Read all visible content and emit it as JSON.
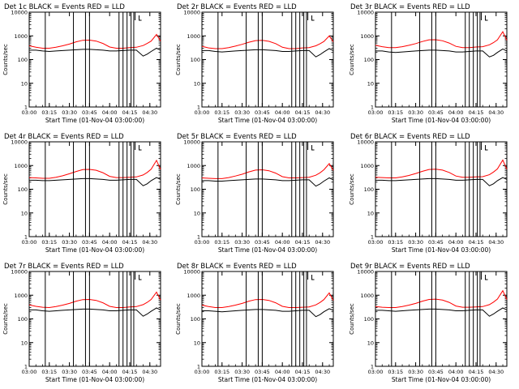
{
  "colors": {
    "events": "#000000",
    "lld": "#ff0000",
    "background": "#ffffff",
    "axes": "#000000"
  },
  "chart_data": [
    {
      "type": "line",
      "title": "Det 1c BLACK = Events  RED = LLD",
      "xlabel": "Start Time (01-Nov-04 03:00:00)",
      "ylabel": "Counts/sec",
      "yscale": "log",
      "ylim": [
        1,
        10000
      ],
      "xlim": [
        "03:00",
        "04:38"
      ],
      "x_ticks": [
        "03:00",
        "03:15",
        "03:30",
        "03:45",
        "04:00",
        "04:15",
        "04:30"
      ],
      "y_ticks": [
        "1",
        "10",
        "100",
        "1000",
        "10000"
      ],
      "x": [
        "03:00",
        "03:05",
        "03:10",
        "03:15",
        "03:20",
        "03:25",
        "03:30",
        "03:35",
        "03:40",
        "03:45",
        "03:50",
        "03:55",
        "04:00",
        "04:05",
        "04:10",
        "04:15",
        "04:20",
        "04:25",
        "04:28",
        "04:31",
        "04:35",
        "04:38"
      ],
      "series": [
        {
          "name": "Events",
          "values": [
            250,
            250,
            230,
            220,
            230,
            240,
            250,
            260,
            270,
            270,
            260,
            250,
            230,
            230,
            240,
            250,
            250,
            140,
            170,
            220,
            300,
            250
          ]
        },
        {
          "name": "LLD",
          "values": [
            380,
            330,
            300,
            300,
            330,
            380,
            450,
            560,
            650,
            660,
            600,
            480,
            340,
            300,
            300,
            320,
            330,
            390,
            480,
            600,
            1150,
            600
          ]
        }
      ],
      "vertical_markers": [
        "03:12",
        "03:33",
        "03:42",
        "03:45",
        "04:07",
        "04:10",
        "04:13",
        "04:16",
        "04:18"
      ],
      "bracket_markers": [
        "04:19",
        "04:22"
      ]
    },
    {
      "type": "line",
      "title": "Det 2r BLACK = Events  RED = LLD",
      "xlabel": "Start Time (01-Nov-04 03:00:00)",
      "ylabel": "Counts/sec",
      "yscale": "log",
      "ylim": [
        1,
        10000
      ],
      "xlim": [
        "03:00",
        "04:38"
      ],
      "x_ticks": [
        "03:00",
        "03:15",
        "03:30",
        "03:45",
        "04:00",
        "04:15",
        "04:30"
      ],
      "y_ticks": [
        "1",
        "10",
        "100",
        "1000",
        "10000"
      ],
      "x": [
        "03:00",
        "03:05",
        "03:10",
        "03:15",
        "03:20",
        "03:25",
        "03:30",
        "03:35",
        "03:40",
        "03:45",
        "03:50",
        "03:55",
        "04:00",
        "04:05",
        "04:10",
        "04:15",
        "04:20",
        "04:25",
        "04:28",
        "04:31",
        "04:35",
        "04:38"
      ],
      "series": [
        {
          "name": "Events",
          "values": [
            240,
            240,
            220,
            210,
            220,
            230,
            240,
            250,
            260,
            260,
            250,
            240,
            220,
            220,
            230,
            240,
            240,
            130,
            160,
            210,
            290,
            240
          ]
        },
        {
          "name": "LLD",
          "values": [
            360,
            310,
            290,
            290,
            320,
            370,
            440,
            540,
            630,
            650,
            590,
            470,
            330,
            290,
            290,
            310,
            320,
            380,
            460,
            580,
            1000,
            560
          ]
        }
      ],
      "vertical_markers": [
        "03:12",
        "03:33",
        "03:42",
        "03:45",
        "04:07",
        "04:10",
        "04:13",
        "04:16",
        "04:18"
      ],
      "bracket_markers": [
        "04:19",
        "04:22"
      ]
    },
    {
      "type": "line",
      "title": "Det 3r BLACK = Events  RED = LLD",
      "xlabel": "Start Time (01-Nov-04 03:00:00)",
      "ylabel": "Counts/sec",
      "yscale": "log",
      "ylim": [
        1,
        10000
      ],
      "xlim": [
        "03:00",
        "04:38"
      ],
      "x_ticks": [
        "03:00",
        "03:15",
        "03:30",
        "03:45",
        "04:00",
        "04:15",
        "04:30"
      ],
      "y_ticks": [
        "1",
        "10",
        "100",
        "1000",
        "10000"
      ],
      "x": [
        "03:00",
        "03:05",
        "03:10",
        "03:15",
        "03:20",
        "03:25",
        "03:30",
        "03:35",
        "03:40",
        "03:45",
        "03:50",
        "03:55",
        "04:00",
        "04:05",
        "04:10",
        "04:15",
        "04:20",
        "04:25",
        "04:28",
        "04:31",
        "04:35",
        "04:38"
      ],
      "series": [
        {
          "name": "Events",
          "values": [
            230,
            230,
            210,
            200,
            210,
            220,
            230,
            240,
            250,
            250,
            240,
            230,
            210,
            210,
            220,
            230,
            230,
            130,
            150,
            200,
            280,
            230
          ]
        },
        {
          "name": "LLD",
          "values": [
            400,
            350,
            320,
            320,
            350,
            400,
            470,
            580,
            680,
            690,
            620,
            500,
            360,
            320,
            320,
            340,
            350,
            420,
            520,
            680,
            1500,
            650
          ]
        }
      ],
      "vertical_markers": [
        "03:12",
        "03:33",
        "03:42",
        "03:45",
        "04:07",
        "04:10",
        "04:13",
        "04:16",
        "04:18"
      ],
      "bracket_markers": [
        "04:19",
        "04:22"
      ]
    },
    {
      "type": "line",
      "title": "Det 4r BLACK = Events  RED = LLD",
      "xlabel": "Start Time (01-Nov-04 03:00:00)",
      "ylabel": "Counts/sec",
      "yscale": "log",
      "ylim": [
        1,
        10000
      ],
      "xlim": [
        "03:00",
        "04:38"
      ],
      "x_ticks": [
        "03:00",
        "03:15",
        "03:30",
        "03:45",
        "04:00",
        "04:15",
        "04:30"
      ],
      "y_ticks": [
        "1",
        "10",
        "100",
        "1000",
        "10000"
      ],
      "x": [
        "03:00",
        "03:05",
        "03:10",
        "03:15",
        "03:20",
        "03:25",
        "03:30",
        "03:35",
        "03:40",
        "03:45",
        "03:50",
        "03:55",
        "04:00",
        "04:05",
        "04:10",
        "04:15",
        "04:20",
        "04:25",
        "04:28",
        "04:31",
        "04:35",
        "04:38"
      ],
      "series": [
        {
          "name": "Events",
          "values": [
            240,
            240,
            230,
            230,
            240,
            250,
            260,
            270,
            280,
            280,
            270,
            260,
            240,
            240,
            250,
            260,
            260,
            140,
            170,
            230,
            310,
            260
          ]
        },
        {
          "name": "LLD",
          "values": [
            310,
            300,
            290,
            290,
            320,
            370,
            450,
            560,
            670,
            690,
            630,
            500,
            350,
            310,
            310,
            320,
            330,
            400,
            510,
            700,
            1650,
            680
          ]
        }
      ],
      "vertical_markers": [
        "03:12",
        "03:33",
        "03:42",
        "03:45",
        "04:07",
        "04:10",
        "04:13",
        "04:16",
        "04:18"
      ],
      "bracket_markers": [
        "04:19",
        "04:22"
      ]
    },
    {
      "type": "line",
      "title": "Det 5r BLACK = Events  RED = LLD",
      "xlabel": "Start Time (01-Nov-04 03:00:00)",
      "ylabel": "Counts/sec",
      "yscale": "log",
      "ylim": [
        1,
        10000
      ],
      "xlim": [
        "03:00",
        "04:38"
      ],
      "x_ticks": [
        "03:00",
        "03:15",
        "03:30",
        "03:45",
        "04:00",
        "04:15",
        "04:30"
      ],
      "y_ticks": [
        "1",
        "10",
        "100",
        "1000",
        "10000"
      ],
      "x": [
        "03:00",
        "03:05",
        "03:10",
        "03:15",
        "03:20",
        "03:25",
        "03:30",
        "03:35",
        "03:40",
        "03:45",
        "03:50",
        "03:55",
        "04:00",
        "04:05",
        "04:10",
        "04:15",
        "04:20",
        "04:25",
        "04:28",
        "04:31",
        "04:35",
        "04:38"
      ],
      "series": [
        {
          "name": "Events",
          "values": [
            230,
            230,
            220,
            220,
            230,
            240,
            250,
            260,
            270,
            270,
            260,
            250,
            230,
            230,
            240,
            250,
            250,
            135,
            165,
            220,
            300,
            250
          ]
        },
        {
          "name": "LLD",
          "values": [
            300,
            290,
            280,
            280,
            310,
            360,
            430,
            540,
            640,
            660,
            600,
            480,
            340,
            300,
            300,
            310,
            320,
            390,
            490,
            660,
            1200,
            620
          ]
        }
      ],
      "vertical_markers": [
        "03:12",
        "03:33",
        "03:42",
        "03:45",
        "04:07",
        "04:10",
        "04:13",
        "04:16",
        "04:18"
      ],
      "bracket_markers": [
        "04:19",
        "04:22"
      ]
    },
    {
      "type": "line",
      "title": "Det 6r BLACK = Events  RED = LLD",
      "xlabel": "Start Time (01-Nov-04 03:00:00)",
      "ylabel": "Counts/sec",
      "yscale": "log",
      "ylim": [
        1,
        10000
      ],
      "xlim": [
        "03:00",
        "04:38"
      ],
      "x_ticks": [
        "03:00",
        "03:15",
        "03:30",
        "03:45",
        "04:00",
        "04:15",
        "04:30"
      ],
      "y_ticks": [
        "1",
        "10",
        "100",
        "1000",
        "10000"
      ],
      "x": [
        "03:00",
        "03:05",
        "03:10",
        "03:15",
        "03:20",
        "03:25",
        "03:30",
        "03:35",
        "03:40",
        "03:45",
        "03:50",
        "03:55",
        "04:00",
        "04:05",
        "04:10",
        "04:15",
        "04:20",
        "04:25",
        "04:28",
        "04:31",
        "04:35",
        "04:38"
      ],
      "series": [
        {
          "name": "Events",
          "values": [
            240,
            240,
            230,
            230,
            240,
            250,
            260,
            270,
            280,
            280,
            270,
            260,
            240,
            240,
            250,
            260,
            260,
            140,
            170,
            230,
            310,
            260
          ]
        },
        {
          "name": "LLD",
          "values": [
            320,
            310,
            300,
            300,
            330,
            380,
            460,
            570,
            680,
            700,
            640,
            510,
            360,
            320,
            320,
            330,
            340,
            410,
            530,
            720,
            1700,
            700
          ]
        }
      ],
      "vertical_markers": [
        "03:12",
        "03:33",
        "03:42",
        "03:45",
        "04:07",
        "04:10",
        "04:13",
        "04:16",
        "04:18"
      ],
      "bracket_markers": [
        "04:19",
        "04:22"
      ]
    },
    {
      "type": "line",
      "title": "Det 7r BLACK = Events  RED = LLD",
      "xlabel": "Start Time (01-Nov-04 03:00:00)",
      "ylabel": "Counts/sec",
      "yscale": "log",
      "ylim": [
        1,
        10000
      ],
      "xlim": [
        "03:00",
        "04:38"
      ],
      "x_ticks": [
        "03:00",
        "03:15",
        "03:30",
        "03:45",
        "04:00",
        "04:15",
        "04:30"
      ],
      "y_ticks": [
        "1",
        "10",
        "100",
        "1000",
        "10000"
      ],
      "x": [
        "03:00",
        "03:05",
        "03:10",
        "03:15",
        "03:20",
        "03:25",
        "03:30",
        "03:35",
        "03:40",
        "03:45",
        "03:50",
        "03:55",
        "04:00",
        "04:05",
        "04:10",
        "04:15",
        "04:20",
        "04:25",
        "04:28",
        "04:31",
        "04:35",
        "04:38"
      ],
      "series": [
        {
          "name": "Events",
          "values": [
            240,
            240,
            220,
            210,
            220,
            230,
            240,
            250,
            260,
            260,
            250,
            240,
            220,
            220,
            230,
            240,
            240,
            130,
            160,
            210,
            290,
            240
          ]
        },
        {
          "name": "LLD",
          "values": [
            390,
            340,
            310,
            300,
            330,
            380,
            450,
            560,
            650,
            660,
            600,
            480,
            340,
            300,
            300,
            320,
            330,
            400,
            500,
            660,
            1350,
            620
          ]
        }
      ],
      "vertical_markers": [
        "03:12",
        "03:33",
        "03:42",
        "03:45",
        "04:07",
        "04:10",
        "04:13",
        "04:16",
        "04:18"
      ],
      "bracket_markers": [
        "04:19",
        "04:22"
      ]
    },
    {
      "type": "line",
      "title": "Det 8r BLACK = Events  RED = LLD",
      "xlabel": "Start Time (01-Nov-04 03:00:00)",
      "ylabel": "Counts/sec",
      "yscale": "log",
      "ylim": [
        1,
        10000
      ],
      "xlim": [
        "03:00",
        "04:38"
      ],
      "x_ticks": [
        "03:00",
        "03:15",
        "03:30",
        "03:45",
        "04:00",
        "04:15",
        "04:30"
      ],
      "y_ticks": [
        "1",
        "10",
        "100",
        "1000",
        "10000"
      ],
      "x": [
        "03:00",
        "03:05",
        "03:10",
        "03:15",
        "03:20",
        "03:25",
        "03:30",
        "03:35",
        "03:40",
        "03:45",
        "03:50",
        "03:55",
        "04:00",
        "04:05",
        "04:10",
        "04:15",
        "04:20",
        "04:25",
        "04:28",
        "04:31",
        "04:35",
        "04:38"
      ],
      "series": [
        {
          "name": "Events",
          "values": [
            220,
            220,
            210,
            200,
            210,
            220,
            230,
            240,
            250,
            250,
            240,
            230,
            210,
            210,
            220,
            230,
            230,
            125,
            150,
            200,
            270,
            230
          ]
        },
        {
          "name": "LLD",
          "values": [
            380,
            330,
            300,
            300,
            330,
            380,
            450,
            560,
            650,
            660,
            600,
            480,
            340,
            300,
            300,
            310,
            320,
            390,
            490,
            650,
            1250,
            600
          ]
        }
      ],
      "vertical_markers": [
        "03:12",
        "03:33",
        "03:42",
        "03:45",
        "04:07",
        "04:10",
        "04:13",
        "04:16",
        "04:18"
      ],
      "bracket_markers": [
        "04:19",
        "04:22"
      ]
    },
    {
      "type": "line",
      "title": "Det 9r BLACK = Events  RED = LLD",
      "xlabel": "Start Time (01-Nov-04 03:00:00)",
      "ylabel": "Counts/sec",
      "yscale": "log",
      "ylim": [
        1,
        10000
      ],
      "xlim": [
        "03:00",
        "04:38"
      ],
      "x_ticks": [
        "03:00",
        "03:15",
        "03:30",
        "03:45",
        "04:00",
        "04:15",
        "04:30"
      ],
      "y_ticks": [
        "1",
        "10",
        "100",
        "1000",
        "10000"
      ],
      "x": [
        "03:00",
        "03:05",
        "03:10",
        "03:15",
        "03:20",
        "03:25",
        "03:30",
        "03:35",
        "03:40",
        "03:45",
        "03:50",
        "03:55",
        "04:00",
        "04:05",
        "04:10",
        "04:15",
        "04:20",
        "04:25",
        "04:28",
        "04:31",
        "04:35",
        "04:38"
      ],
      "series": [
        {
          "name": "Events",
          "values": [
            230,
            230,
            220,
            210,
            220,
            230,
            240,
            250,
            260,
            260,
            250,
            240,
            220,
            220,
            230,
            240,
            240,
            130,
            160,
            210,
            290,
            240
          ]
        },
        {
          "name": "LLD",
          "values": [
            330,
            310,
            300,
            300,
            330,
            380,
            450,
            560,
            660,
            680,
            620,
            500,
            350,
            310,
            310,
            320,
            330,
            400,
            510,
            690,
            1550,
            660
          ]
        }
      ],
      "vertical_markers": [
        "03:12",
        "03:33",
        "03:42",
        "03:45",
        "04:07",
        "04:10",
        "04:13",
        "04:16",
        "04:18"
      ],
      "bracket_markers": [
        "04:19",
        "04:22"
      ]
    }
  ]
}
